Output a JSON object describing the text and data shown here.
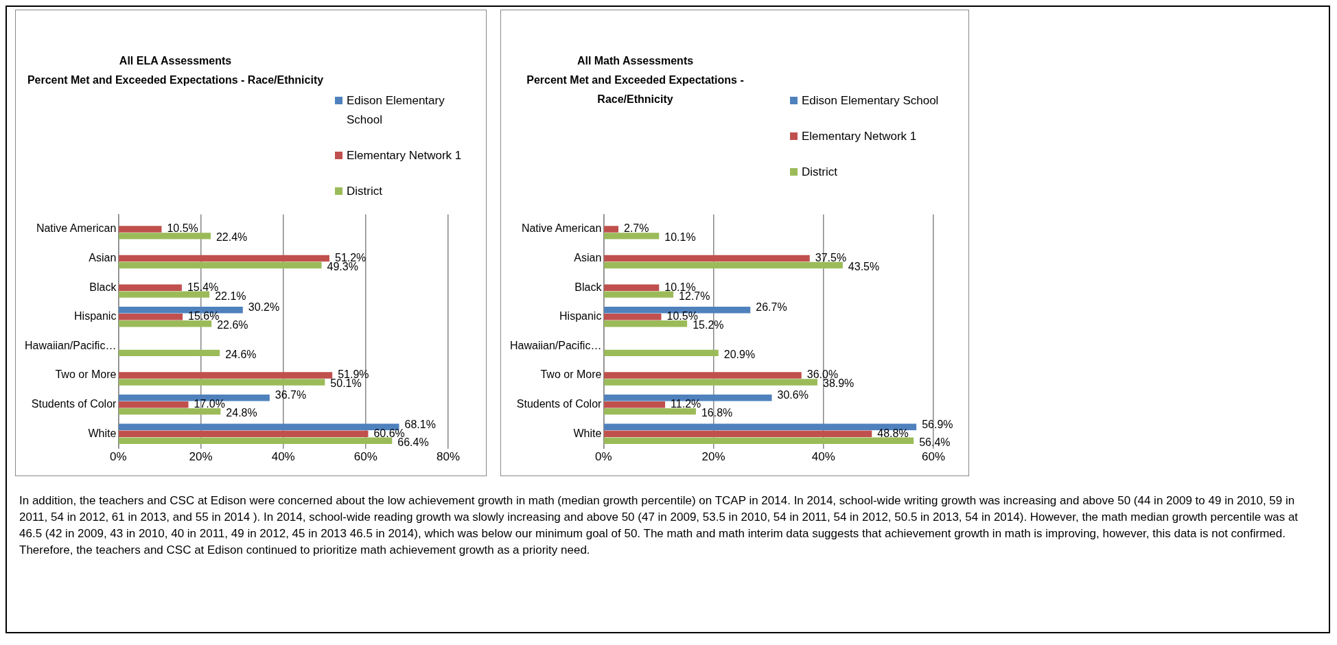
{
  "chart_data": [
    {
      "type": "bar",
      "orientation": "horizontal",
      "title": "All ELA Assessments",
      "subtitle": "Percent Met and Exceeded Expectations - Race/Ethnicity",
      "categories": [
        "Native American",
        "Asian",
        "Black",
        "Hispanic",
        "Hawaiian/Pacific…",
        "Two or More",
        "Students of Color",
        "White"
      ],
      "series": [
        {
          "name": "Edison Elementary School",
          "color": "#4f81bd",
          "values": [
            null,
            null,
            null,
            30.2,
            null,
            null,
            36.7,
            68.1
          ],
          "value_labels": [
            null,
            null,
            null,
            "30.2%",
            null,
            null,
            "36.7%",
            "68.1%"
          ]
        },
        {
          "name": "Elementary Network 1",
          "color": "#c0504d",
          "values": [
            10.5,
            51.2,
            15.4,
            15.6,
            null,
            51.9,
            17.0,
            60.6
          ],
          "value_labels": [
            "10.5%",
            "51.2%",
            "15.4%",
            "15.6%",
            null,
            "51.9%",
            "17.0%",
            "60.6%"
          ]
        },
        {
          "name": "District",
          "color": "#9bbb59",
          "values": [
            22.4,
            49.3,
            22.1,
            22.6,
            24.6,
            50.1,
            24.8,
            66.4
          ],
          "value_labels": [
            "22.4%",
            "49.3%",
            "22.1%",
            "22.6%",
            "24.6%",
            "50.1%",
            "24.8%",
            "66.4%"
          ]
        }
      ],
      "xlim": [
        0,
        80
      ],
      "xticks": [
        {
          "value": 0,
          "label": "0%"
        },
        {
          "value": 20,
          "label": "20%"
        },
        {
          "value": 40,
          "label": "40%"
        },
        {
          "value": 60,
          "label": "60%"
        },
        {
          "value": 80,
          "label": "80%"
        }
      ],
      "grid": "x",
      "legend": "top right"
    },
    {
      "type": "bar",
      "orientation": "horizontal",
      "title": "All Math Assessments",
      "subtitle": "Percent Met and Exceeded Expectations - Race/Ethnicity",
      "categories": [
        "Native American",
        "Asian",
        "Black",
        "Hispanic",
        "Hawaiian/Pacific…",
        "Two or More",
        "Students of Color",
        "White"
      ],
      "series": [
        {
          "name": "Edison Elementary School",
          "color": "#4f81bd",
          "values": [
            null,
            null,
            null,
            26.7,
            null,
            null,
            30.6,
            56.9
          ],
          "value_labels": [
            null,
            null,
            null,
            "26.7%",
            null,
            null,
            "30.6%",
            "56.9%"
          ]
        },
        {
          "name": "Elementary Network 1",
          "color": "#c0504d",
          "values": [
            2.7,
            37.5,
            10.1,
            10.5,
            null,
            36.0,
            11.2,
            48.8
          ],
          "value_labels": [
            "2.7%",
            "37.5%",
            "10.1%",
            "10.5%",
            null,
            "36.0%",
            "11.2%",
            "48.8%"
          ]
        },
        {
          "name": "District",
          "color": "#9bbb59",
          "values": [
            10.1,
            43.5,
            12.7,
            15.2,
            20.9,
            38.9,
            16.8,
            56.4
          ],
          "value_labels": [
            "10.1%",
            "43.5%",
            "12.7%",
            "15.2%",
            "20.9%",
            "38.9%",
            "16.8%",
            "56.4%"
          ]
        }
      ],
      "xlim": [
        0,
        60
      ],
      "xticks": [
        {
          "value": 0,
          "label": "0%"
        },
        {
          "value": 20,
          "label": "20%"
        },
        {
          "value": 40,
          "label": "40%"
        },
        {
          "value": 60,
          "label": "60%"
        }
      ],
      "grid": "x",
      "legend": "top right"
    },
    {
      "type": "other",
      "annotations": [
        "In addition, the teachers and CSC at Edison were concerned about the low achievement growth in math (median growth percentile) on TCAP in 2014. In 2014, school-wide writing growth was increasing and above 50 (44 in 2009 to 49 in 2010, 59 in 2011, 54 in 2012, 61 in 2013, and 55 in 2014 ). In 2014, school-wide reading growth wa slowly increasing and above 50 (47 in 2009, 53.5 in 2010, 54 in 2011, 54 in 2012, 50.5 in 2013, 54 in 2014). However, the math median growth percentile was at 46.5 (42 in 2009, 43 in 2010, 40 in 2011, 49 in 2012, 45 in 2013 46.5 in 2014), which was below our minimum goal of 50. The math and math interim data suggests that achievement growth in math is improving, however, this data is not confirmed. Therefore, the teachers and CSC at Edison continued to prioritize math achievement growth as a priority need."
      ]
    }
  ]
}
